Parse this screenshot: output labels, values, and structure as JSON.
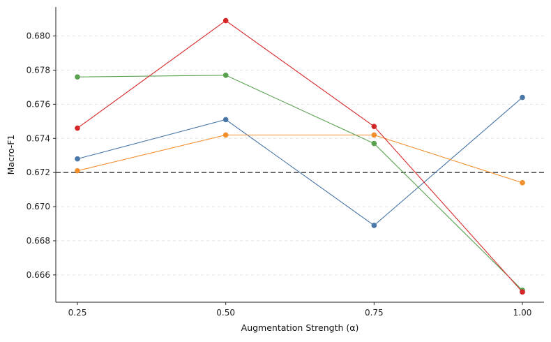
{
  "chart_data": {
    "type": "line",
    "title": "",
    "xlabel": "Augmentation Strength (α)",
    "ylabel": "Macro-F1",
    "x": [
      0.25,
      0.5,
      0.75,
      1.0
    ],
    "x_tick_labels": [
      "0.25",
      "0.50",
      "0.75",
      "1.00"
    ],
    "y_ticks": [
      0.666,
      0.668,
      0.67,
      0.672,
      0.674,
      0.676,
      0.678,
      0.68
    ],
    "y_tick_labels": [
      "0.666",
      "0.668",
      "0.670",
      "0.672",
      "0.674",
      "0.676",
      "0.678",
      "0.680"
    ],
    "ylim": [
      0.6644,
      0.6817
    ],
    "grid": "horizontal dashed",
    "baseline": {
      "value": 0.672,
      "color": "#555555",
      "style": "dashed"
    },
    "series": [
      {
        "color": "#4a76a8",
        "values": [
          0.6728,
          0.6751,
          0.6689,
          0.6764
        ]
      },
      {
        "color": "#f28e2b",
        "values": [
          0.6721,
          0.6742,
          0.6742,
          0.6714
        ]
      },
      {
        "color": "#59a14f",
        "values": [
          0.6776,
          0.6777,
          0.6737,
          0.6651
        ]
      },
      {
        "color": "#d62728",
        "values": [
          0.6746,
          0.6809,
          0.6747,
          0.665
        ]
      }
    ]
  }
}
